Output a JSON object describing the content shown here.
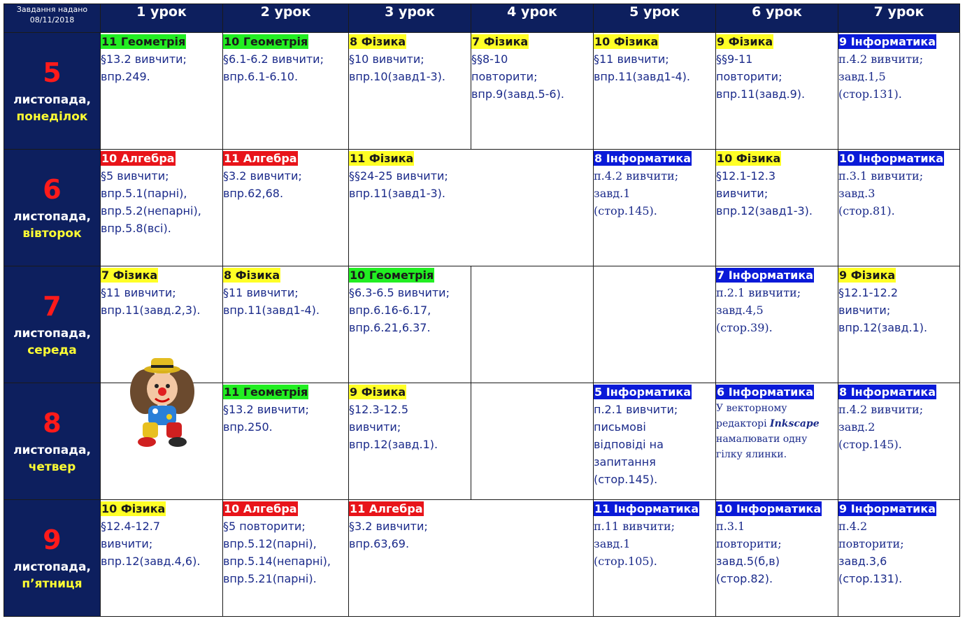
{
  "header": {
    "corner": "Завдання надано\n08/11/2018",
    "lessons": [
      "1 урок",
      "2 урок",
      "3 урок",
      "4 урок",
      "5 урок",
      "6 урок",
      "7 урок"
    ]
  },
  "days": [
    {
      "num": "5",
      "month": "листопада,",
      "name": "понеділок",
      "cells": [
        {
          "subject": "11 Геометрія",
          "color": "green",
          "text": "§13.2 вивчити;\nвпр.249."
        },
        {
          "subject": "10 Геометрія",
          "color": "green",
          "text": "§6.1-6.2 вивчити;\nвпр.6.1-6.10."
        },
        {
          "subject": "8 Фізика",
          "color": "yellow",
          "text": "§10 вивчити;\nвпр.10(завд1-3)."
        },
        {
          "subject": "7 Фізика",
          "color": "yellow",
          "text": "§§8-10\nповторити;\nвпр.9(завд.5-6)."
        },
        {
          "subject": "10 Фізика",
          "color": "yellow",
          "text": "§11 вивчити;\nвпр.11(завд1-4)."
        },
        {
          "subject": "9 Фізика",
          "color": "yellow",
          "text": "§§9-11\nповторити;\nвпр.11(завд.9)."
        },
        {
          "subject": "9 Інформатика",
          "color": "blue",
          "text": "п.4.2 вивчити;\nзавд.1,5\n(стор.131)."
        }
      ]
    },
    {
      "num": "6",
      "month": "листопада,",
      "name": "вівторок",
      "cells": [
        {
          "subject": "10 Алгебра",
          "color": "red",
          "text": "§5 вивчити;\nвпр.5.1(парні),\nвпр.5.2(непарні),\nвпр.5.8(всі)."
        },
        {
          "subject": "11 Алгебра",
          "color": "red",
          "text": "§3.2 вивчити;\nвпр.62,68."
        },
        {
          "subject": "11 Фізика",
          "color": "yellow",
          "text": "§§24-25 вивчити;\nвпр.11(завд1-3)."
        },
        {
          "subject": "8 Інформатика",
          "color": "blue",
          "text": "п.4.2 вивчити;\nзавд.1\n(стор.145)."
        },
        {
          "subject": "10 Фізика",
          "color": "yellow",
          "text": "§12.1-12.3\nвивчити;\nвпр.12(завд1-3)."
        },
        {
          "subject": "10 Інформатика",
          "color": "blue",
          "text": "п.3.1 вивчити;\nзавд.3\n(стор.81)."
        }
      ]
    },
    {
      "num": "7",
      "month": "листопада,",
      "name": "середа",
      "cells": [
        {
          "subject": "7 Фізика",
          "color": "yellow",
          "text": "§11 вивчити;\nвпр.11(завд.2,3)."
        },
        {
          "subject": "8 Фізика",
          "color": "yellow",
          "text": "§11 вивчити;\nвпр.11(завд1-4)."
        },
        {
          "subject": "10 Геометрія",
          "color": "green",
          "text": "§6.3-6.5 вивчити;\nвпр.6.16-6.17,\nвпр.6.21,6.37."
        },
        {
          "subject": "7 Інформатика",
          "color": "blue",
          "text": "п.2.1 вивчити;\nзавд.4,5\n(стор.39)."
        },
        {
          "subject": "9 Фізика",
          "color": "yellow",
          "text": "§12.1-12.2\nвивчити;\nвпр.12(завд.1)."
        }
      ]
    },
    {
      "num": "8",
      "month": "листопада,",
      "name": "четвер",
      "cells": [
        {
          "subject": "11 Геометрія",
          "color": "green",
          "text": "§13.2 вивчити;\nвпр.250."
        },
        {
          "subject": "9 Фізика",
          "color": "yellow",
          "text": "§12.3-12.5\nвивчити;\nвпр.12(завд.1)."
        },
        {
          "subject": "5 Інформатика",
          "color": "blue",
          "text": "п.2.1 вивчити;\nписьмові\nвідповіді на\nзапитання\n(стор.145)."
        },
        {
          "subject": "6 Інформатика",
          "color": "blue",
          "text_a": "У векторному\nредакторі ",
          "text_em": "Inkscape",
          "text_b": "\nнамалювати одну\nгілку ялинки."
        },
        {
          "subject": "8 Інформатика",
          "color": "blue",
          "text": "п.4.2 вивчити;\nзавд.2\n(стор.145)."
        }
      ]
    },
    {
      "num": "9",
      "month": "листопада,",
      "name": "п’ятниця",
      "cells": [
        {
          "subject": "10 Фізика",
          "color": "yellow",
          "text": "§12.4-12.7\nвивчити;\nвпр.12(завд.4,6)."
        },
        {
          "subject": "10 Алгебра",
          "color": "red",
          "text": "§5 повторити;\nвпр.5.12(парні),\nвпр.5.14(непарні),\nвпр.5.21(парні)."
        },
        {
          "subject": "11 Алгебра",
          "color": "red",
          "text": "§3.2 вивчити;\nвпр.63,69."
        },
        {
          "subject": "11 Інформатика",
          "color": "blue",
          "text": "п.11 вивчити;\nзавд.1\n(стор.105)."
        },
        {
          "subject": "10 Інформатика",
          "color": "blue",
          "text_a": "п.3.1\nповторити;",
          "text_b": "\nзавд.5(б,в)\n(стор.82)."
        },
        {
          "subject": "9 Інформатика",
          "color": "blue",
          "text_a": "п.4.2\nповторити;",
          "text_b": "\nзавд.3,6\n(стор.131)."
        }
      ]
    }
  ],
  "colors": {
    "header_bg": "#0d1f5e",
    "day_num": "#ff1a1a",
    "day_name": "#ffff33",
    "text": "#1a2a8a",
    "yellow": "#ffff26",
    "green": "#22ee22",
    "red": "#e8141a",
    "blue": "#0a1ad8"
  },
  "mascot_icon": "clown-toy-icon"
}
